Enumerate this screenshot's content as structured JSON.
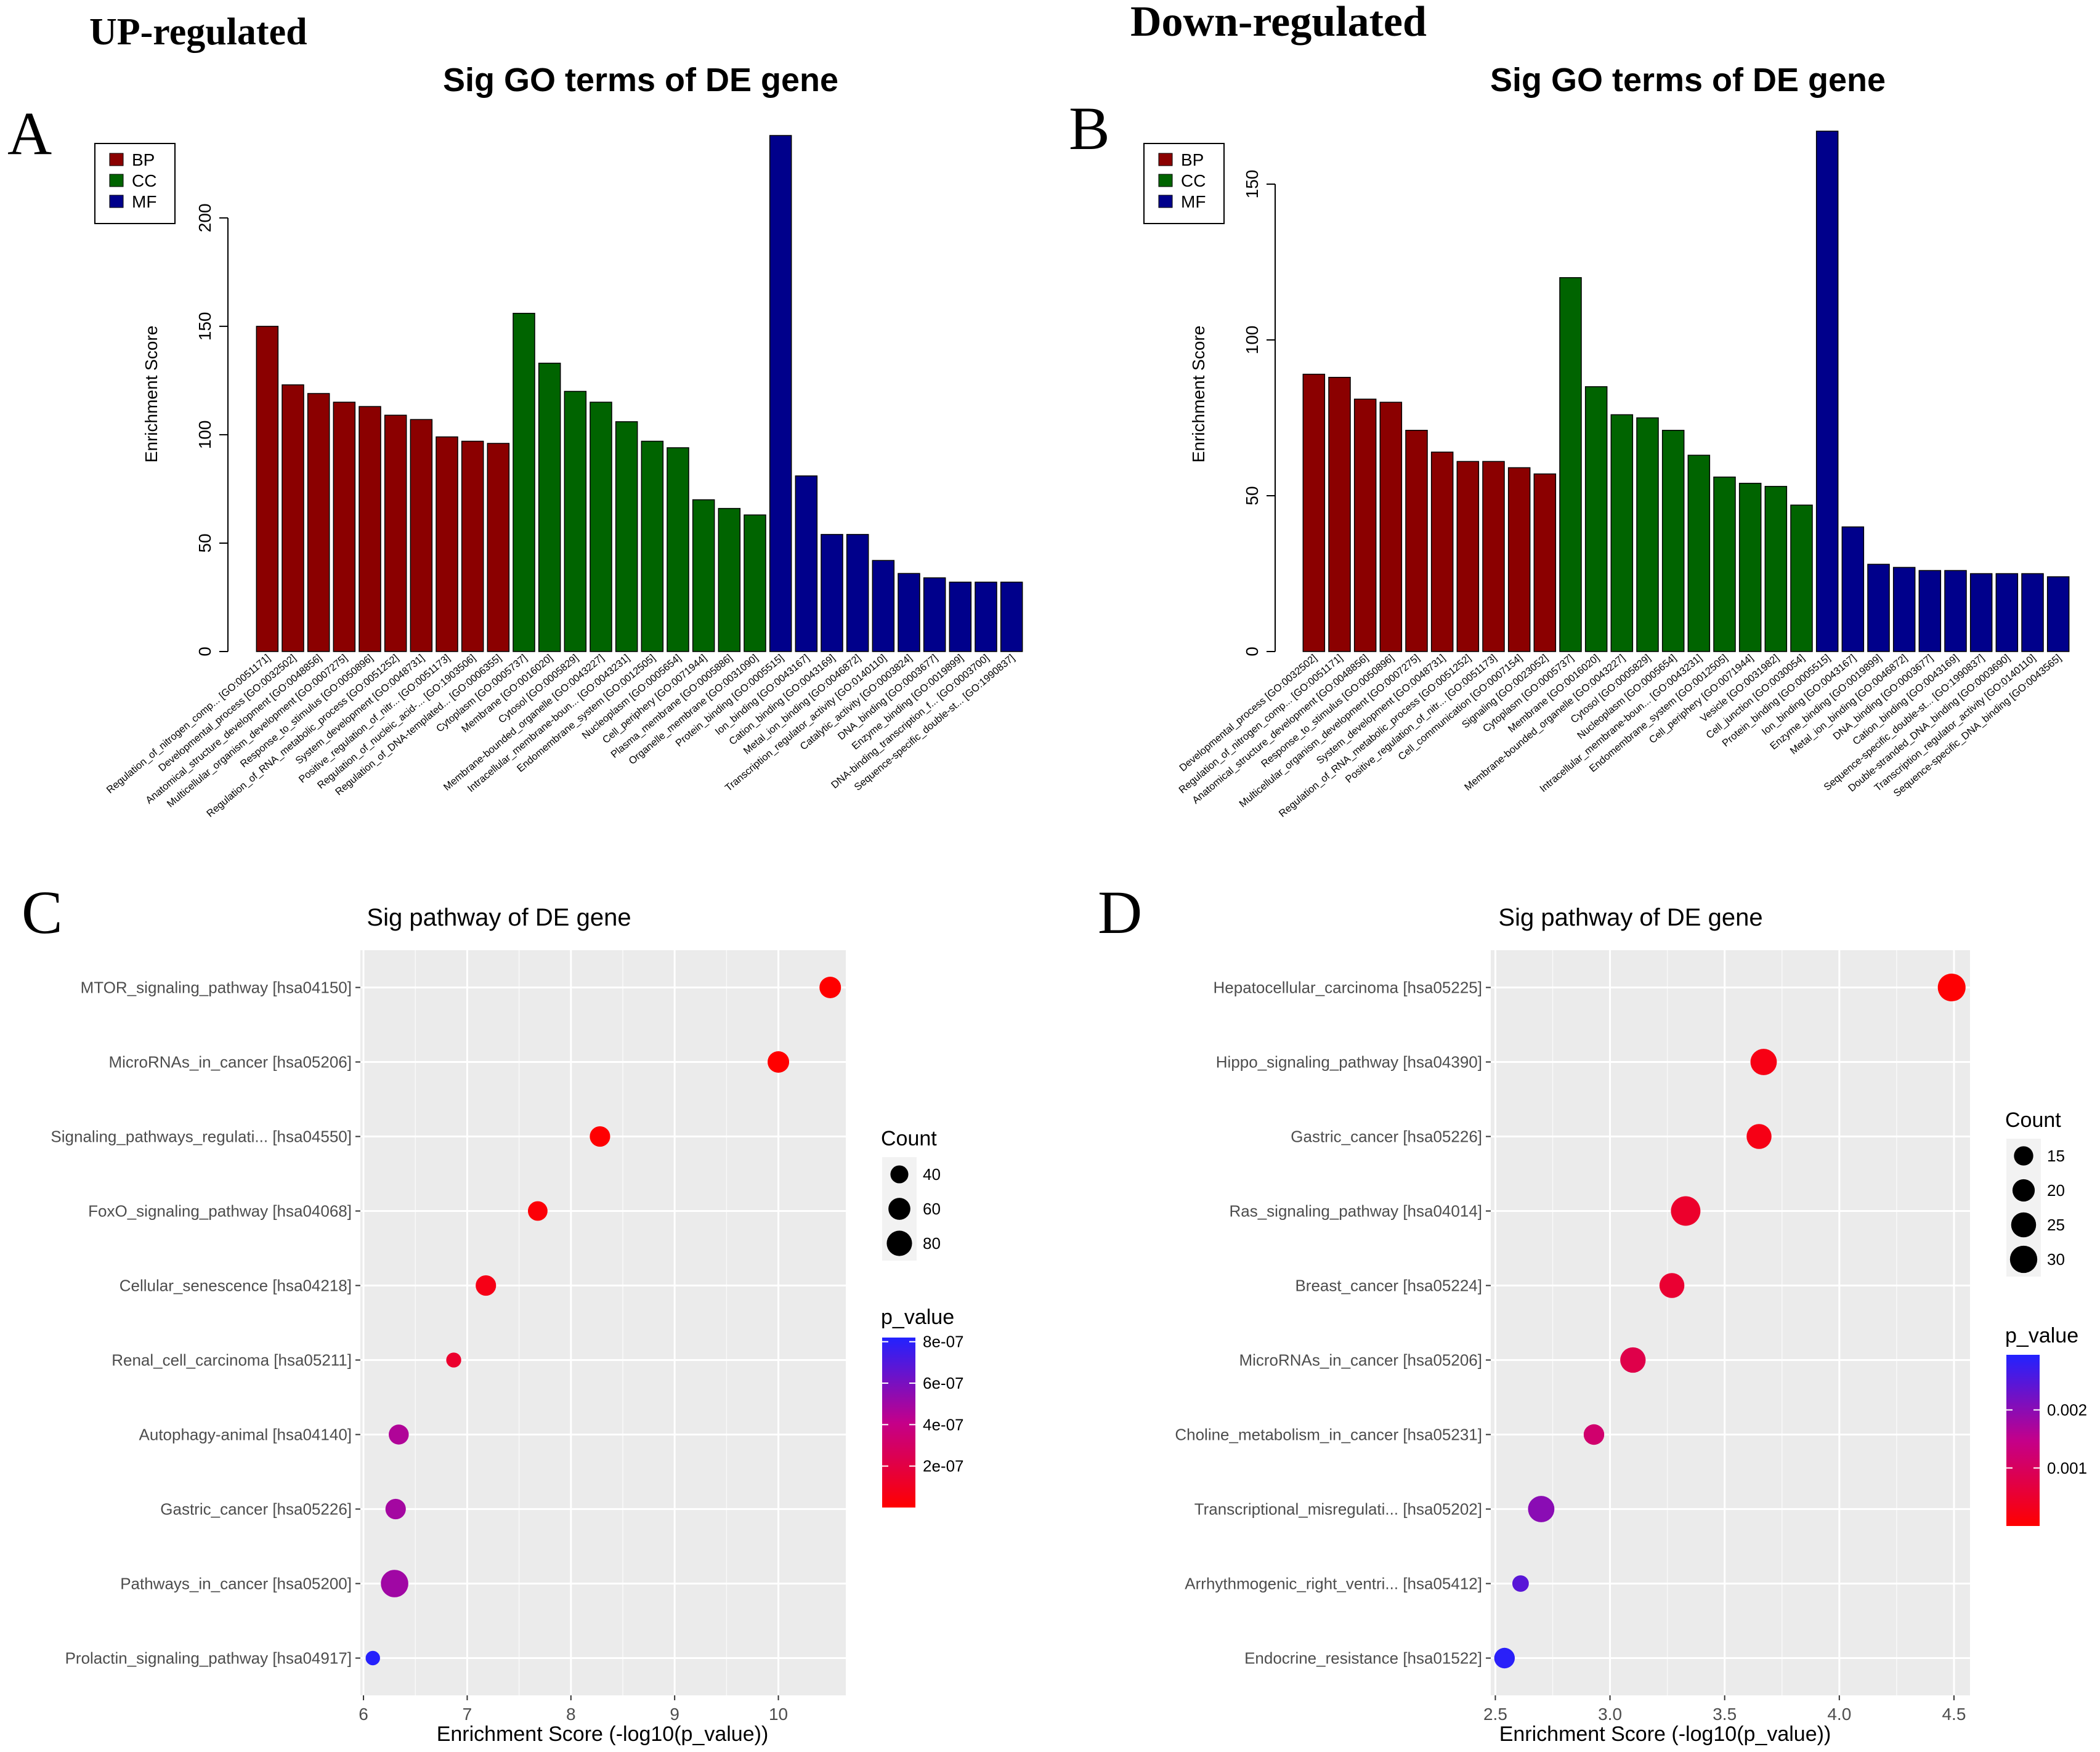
{
  "headings": {
    "up": "UP-regulated",
    "down": "Down-regulated"
  },
  "panel_labels": {
    "a": "A",
    "b": "B",
    "c": "C",
    "d": "D"
  },
  "colors": {
    "BP": "#8B0000",
    "CC": "#006400",
    "MF": "#00008B",
    "grey_panel": "#EBEBEB",
    "grid": "#FFFFFF"
  },
  "chart_data": [
    {
      "id": "A",
      "type": "bar",
      "title": "Sig GO terms of DE gene",
      "ylabel": "Enrichment Score",
      "xlabel": "",
      "ylim": [
        0,
        240
      ],
      "yticks": [
        0,
        50,
        100,
        150,
        200
      ],
      "legend": {
        "placement": "top-left",
        "entries": [
          "BP",
          "CC",
          "MF"
        ]
      },
      "categories": [
        {
          "label": "Regulation_of_nitrogen_comp... [GO:0051171]",
          "group": "BP",
          "value": 150
        },
        {
          "label": "Developmental_process [GO:0032502]",
          "group": "BP",
          "value": 123
        },
        {
          "label": "Anatomical_structure_development [GO:0048856]",
          "group": "BP",
          "value": 119
        },
        {
          "label": "Multicellular_organism_development [GO:0007275]",
          "group": "BP",
          "value": 115
        },
        {
          "label": "Response_to_stimulus [GO:0050896]",
          "group": "BP",
          "value": 113
        },
        {
          "label": "Regulation_of_RNA_metabolic_process [GO:0051252]",
          "group": "BP",
          "value": 109
        },
        {
          "label": "System_development [GO:0048731]",
          "group": "BP",
          "value": 107
        },
        {
          "label": "Positive_regulation_of_nitr... [GO:0051173]",
          "group": "BP",
          "value": 99
        },
        {
          "label": "Regulation_of_nucleic_acid-... [GO:1903506]",
          "group": "BP",
          "value": 97
        },
        {
          "label": "Regulation_of_DNA-templated... [GO:0006355]",
          "group": "BP",
          "value": 96
        },
        {
          "label": "Cytoplasm [GO:0005737]",
          "group": "CC",
          "value": 156
        },
        {
          "label": "Membrane [GO:0016020]",
          "group": "CC",
          "value": 133
        },
        {
          "label": "Cytosol [GO:0005829]",
          "group": "CC",
          "value": 120
        },
        {
          "label": "Membrane-bounded_organelle [GO:0043227]",
          "group": "CC",
          "value": 115
        },
        {
          "label": "Intracellular_membrane-boun... [GO:0043231]",
          "group": "CC",
          "value": 106
        },
        {
          "label": "Endomembrane_system [GO:0012505]",
          "group": "CC",
          "value": 97
        },
        {
          "label": "Nucleoplasm [GO:0005654]",
          "group": "CC",
          "value": 94
        },
        {
          "label": "Cell_periphery [GO:0071944]",
          "group": "CC",
          "value": 70
        },
        {
          "label": "Plasma_membrane [GO:0005886]",
          "group": "CC",
          "value": 66
        },
        {
          "label": "Organelle_membrane [GO:0031090]",
          "group": "CC",
          "value": 63
        },
        {
          "label": "Protein_binding [GO:0005515]",
          "group": "MF",
          "value": 238
        },
        {
          "label": "Ion_binding [GO:0043167]",
          "group": "MF",
          "value": 81
        },
        {
          "label": "Cation_binding [GO:0043169]",
          "group": "MF",
          "value": 54
        },
        {
          "label": "Metal_ion_binding [GO:0046872]",
          "group": "MF",
          "value": 54
        },
        {
          "label": "Transcription_regulator_activity [GO:0140110]",
          "group": "MF",
          "value": 42
        },
        {
          "label": "Catalytic_activity [GO:0003824]",
          "group": "MF",
          "value": 36
        },
        {
          "label": "DNA_binding [GO:0003677]",
          "group": "MF",
          "value": 34
        },
        {
          "label": "Enzyme_binding [GO:0019899]",
          "group": "MF",
          "value": 32
        },
        {
          "label": "DNA-binding_transcription_f... [GO:0003700]",
          "group": "MF",
          "value": 32
        },
        {
          "label": "Sequence-specific_double-st... [GO:1990837]",
          "group": "MF",
          "value": 32
        }
      ]
    },
    {
      "id": "B",
      "type": "bar",
      "title": "Sig GO terms of DE gene",
      "ylabel": "Enrichment Score",
      "xlabel": "",
      "ylim": [
        0,
        167
      ],
      "yticks": [
        0,
        50,
        100,
        150
      ],
      "legend": {
        "placement": "top-left",
        "entries": [
          "BP",
          "CC",
          "MF"
        ]
      },
      "categories": [
        {
          "label": "Developmental_process [GO:0032502]",
          "group": "BP",
          "value": 89
        },
        {
          "label": "Regulation_of_nitrogen_comp... [GO:0051171]",
          "group": "BP",
          "value": 88
        },
        {
          "label": "Anatomical_structure_development [GO:0048856]",
          "group": "BP",
          "value": 81
        },
        {
          "label": "Response_to_stimulus [GO:0050896]",
          "group": "BP",
          "value": 80
        },
        {
          "label": "Multicellular_organism_development [GO:0007275]",
          "group": "BP",
          "value": 71
        },
        {
          "label": "System_development [GO:0048731]",
          "group": "BP",
          "value": 64
        },
        {
          "label": "Regulation_of_RNA_metabolic_process [GO:0051252]",
          "group": "BP",
          "value": 61
        },
        {
          "label": "Positive_regulation_of_nitr... [GO:0051173]",
          "group": "BP",
          "value": 61
        },
        {
          "label": "Cell_communication [GO:0007154]",
          "group": "BP",
          "value": 59
        },
        {
          "label": "Signaling [GO:0023052]",
          "group": "BP",
          "value": 57
        },
        {
          "label": "Cytoplasm [GO:0005737]",
          "group": "CC",
          "value": 120
        },
        {
          "label": "Membrane [GO:0016020]",
          "group": "CC",
          "value": 85
        },
        {
          "label": "Membrane-bounded_organelle [GO:0043227]",
          "group": "CC",
          "value": 76
        },
        {
          "label": "Cytosol [GO:0005829]",
          "group": "CC",
          "value": 75
        },
        {
          "label": "Nucleoplasm [GO:0005654]",
          "group": "CC",
          "value": 71
        },
        {
          "label": "Intracellular_membrane-boun... [GO:0043231]",
          "group": "CC",
          "value": 63
        },
        {
          "label": "Endomembrane_system [GO:0012505]",
          "group": "CC",
          "value": 56
        },
        {
          "label": "Cell_periphery [GO:0071944]",
          "group": "CC",
          "value": 54
        },
        {
          "label": "Vesicle [GO:0031982]",
          "group": "CC",
          "value": 53
        },
        {
          "label": "Cell_junction [GO:0030054]",
          "group": "CC",
          "value": 47
        },
        {
          "label": "Protein_binding [GO:0005515]",
          "group": "MF",
          "value": 167
        },
        {
          "label": "Ion_binding [GO:0043167]",
          "group": "MF",
          "value": 40
        },
        {
          "label": "Enzyme_binding [GO:0019899]",
          "group": "MF",
          "value": 28
        },
        {
          "label": "Metal_ion_binding [GO:0046872]",
          "group": "MF",
          "value": 27
        },
        {
          "label": "DNA_binding [GO:0003677]",
          "group": "MF",
          "value": 26
        },
        {
          "label": "Cation_binding [GO:0043169]",
          "group": "MF",
          "value": 26
        },
        {
          "label": "Sequence-specific_double-st... [GO:1990837]",
          "group": "MF",
          "value": 25
        },
        {
          "label": "Double-stranded_DNA_binding [GO:0003690]",
          "group": "MF",
          "value": 25
        },
        {
          "label": "Transcription_regulator_activity [GO:0140110]",
          "group": "MF",
          "value": 25
        },
        {
          "label": "Sequence-specific_DNA_binding [GO:0043565]",
          "group": "MF",
          "value": 24
        }
      ]
    },
    {
      "id": "C",
      "type": "scatter",
      "title": "Sig pathway of DE gene",
      "xlabel": "Enrichment Score (-log10(p_value))",
      "ylabel": "",
      "xlim": [
        5.97,
        10.65
      ],
      "xticks": [
        6,
        7,
        8,
        9,
        10
      ],
      "size_legend": {
        "title": "Count",
        "values": [
          40,
          60,
          80
        ]
      },
      "color_legend": {
        "title": "p_value",
        "min": 0,
        "max": 8.2e-07,
        "ticks": [
          2e-07,
          4e-07,
          6e-07,
          8e-07
        ],
        "tick_labels": [
          "2e-07",
          "4e-07",
          "6e-07",
          "8e-07"
        ]
      },
      "points": [
        {
          "label": "MTOR_signaling_pathway [hsa04150]",
          "x": 10.5,
          "count": 58,
          "p": 3.2e-11
        },
        {
          "label": "MicroRNAs_in_cancer [hsa05206]",
          "x": 10.0,
          "count": 58,
          "p": 1e-10
        },
        {
          "label": "Signaling_pathways_regulati... [hsa04550]",
          "x": 8.28,
          "count": 52,
          "p": 5.2e-09
        },
        {
          "label": "FoxO_signaling_pathway [hsa04068]",
          "x": 7.68,
          "count": 48,
          "p": 2.1e-08
        },
        {
          "label": "Cellular_senescence [hsa04218]",
          "x": 7.18,
          "count": 52,
          "p": 6.6e-08
        },
        {
          "label": "Renal_cell_carcinoma [hsa05211]",
          "x": 6.87,
          "count": 28,
          "p": 1.35e-07
        },
        {
          "label": "Autophagy-animal [hsa04140]",
          "x": 6.34,
          "count": 50,
          "p": 4.6e-07
        },
        {
          "label": "Gastric_cancer [hsa05226]",
          "x": 6.31,
          "count": 52,
          "p": 4.9e-07
        },
        {
          "label": "Pathways_in_cancer [hsa05200]",
          "x": 6.3,
          "count": 94,
          "p": 5e-07
        },
        {
          "label": "Prolactin_signaling_pathway [hsa04917]",
          "x": 6.09,
          "count": 26,
          "p": 8.1e-07
        }
      ]
    },
    {
      "id": "D",
      "type": "scatter",
      "title": "Sig pathway of DE gene",
      "xlabel": "Enrichment Score (-log10(p_value))",
      "ylabel": "",
      "xlim": [
        2.48,
        4.57
      ],
      "xticks": [
        2.5,
        3.0,
        3.5,
        4.0,
        4.5
      ],
      "xtick_labels": [
        "2.5",
        "3.0",
        "3.5",
        "4.0",
        "4.5"
      ],
      "size_legend": {
        "title": "Count",
        "values": [
          15,
          20,
          25,
          30
        ]
      },
      "color_legend": {
        "title": "p_value",
        "min": 0,
        "max": 0.00295,
        "ticks": [
          0.001,
          0.002
        ],
        "tick_labels": [
          "0.001",
          "0.002"
        ]
      },
      "points": [
        {
          "label": "Hepatocellular_carcinoma [hsa05225]",
          "x": 4.49,
          "count": 31,
          "p": 3e-05
        },
        {
          "label": "Hippo_signaling_pathway [hsa04390]",
          "x": 3.67,
          "count": 28,
          "p": 0.00021
        },
        {
          "label": "Gastric_cancer [hsa05226]",
          "x": 3.65,
          "count": 25,
          "p": 0.00022
        },
        {
          "label": "Ras_signaling_pathway [hsa04014]",
          "x": 3.33,
          "count": 35,
          "p": 0.00047
        },
        {
          "label": "Breast_cancer [hsa05224]",
          "x": 3.27,
          "count": 25,
          "p": 0.00053
        },
        {
          "label": "MicroRNAs_in_cancer [hsa05206]",
          "x": 3.1,
          "count": 26,
          "p": 0.00079
        },
        {
          "label": "Choline_metabolism_in_cancer [hsa05231]",
          "x": 2.93,
          "count": 17,
          "p": 0.00117
        },
        {
          "label": "Transcriptional_misregulati... [hsa05202]",
          "x": 2.7,
          "count": 28,
          "p": 0.002
        },
        {
          "label": "Arrhythmogenic_right_ventri... [hsa05412]",
          "x": 2.61,
          "count": 11,
          "p": 0.00245
        },
        {
          "label": "Endocrine_resistance [hsa01522]",
          "x": 2.54,
          "count": 17,
          "p": 0.00288
        }
      ]
    }
  ]
}
